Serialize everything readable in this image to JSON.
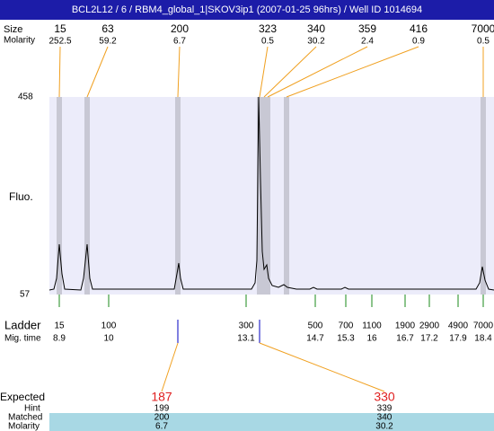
{
  "header": {
    "title": "BCL2L12 / 6 / RBM4_global_1|SKOV3ip1 (2007-01-25 96hrs) / Well ID 1014694"
  },
  "peaks": {
    "size_label": "Size",
    "molarity_label": "Molarity",
    "items": [
      {
        "size": "15",
        "molarity": "252.5"
      },
      {
        "size": "63",
        "molarity": "59.2"
      },
      {
        "size": "200",
        "molarity": "6.7"
      },
      {
        "size": "323",
        "molarity": "0.5"
      },
      {
        "size": "340",
        "molarity": "30.2"
      },
      {
        "size": "359",
        "molarity": "2.4"
      },
      {
        "size": "416",
        "molarity": "0.9"
      },
      {
        "size": "7000",
        "molarity": "0.5"
      }
    ]
  },
  "plot": {
    "y_label": "Fluo.",
    "y_max": "458",
    "y_min": "57"
  },
  "ladder": {
    "label": "Ladder",
    "mig_label": "Mig. time",
    "items": [
      {
        "size": "15",
        "mig_time": "8.9"
      },
      {
        "size": "100",
        "mig_time": "10"
      },
      {
        "size": "300",
        "mig_time": "13.1"
      },
      {
        "size": "500",
        "mig_time": "14.7"
      },
      {
        "size": "700",
        "mig_time": "15.3"
      },
      {
        "size": "1100",
        "mig_time": "16"
      },
      {
        "size": "1900",
        "mig_time": "16.7"
      },
      {
        "size": "2900",
        "mig_time": "17.2"
      },
      {
        "size": "4900",
        "mig_time": "17.9"
      },
      {
        "size": "7000",
        "mig_time": "18.4"
      }
    ]
  },
  "expected": {
    "label": "Expected",
    "hint_label": "Hint",
    "matched_label": "Matched",
    "molarity_label": "Molarity",
    "items": [
      {
        "expected": "187",
        "hint": "199",
        "matched": "200",
        "molarity": "6.7"
      },
      {
        "expected": "330",
        "hint": "339",
        "matched": "340",
        "molarity": "30.2"
      }
    ]
  }
}
